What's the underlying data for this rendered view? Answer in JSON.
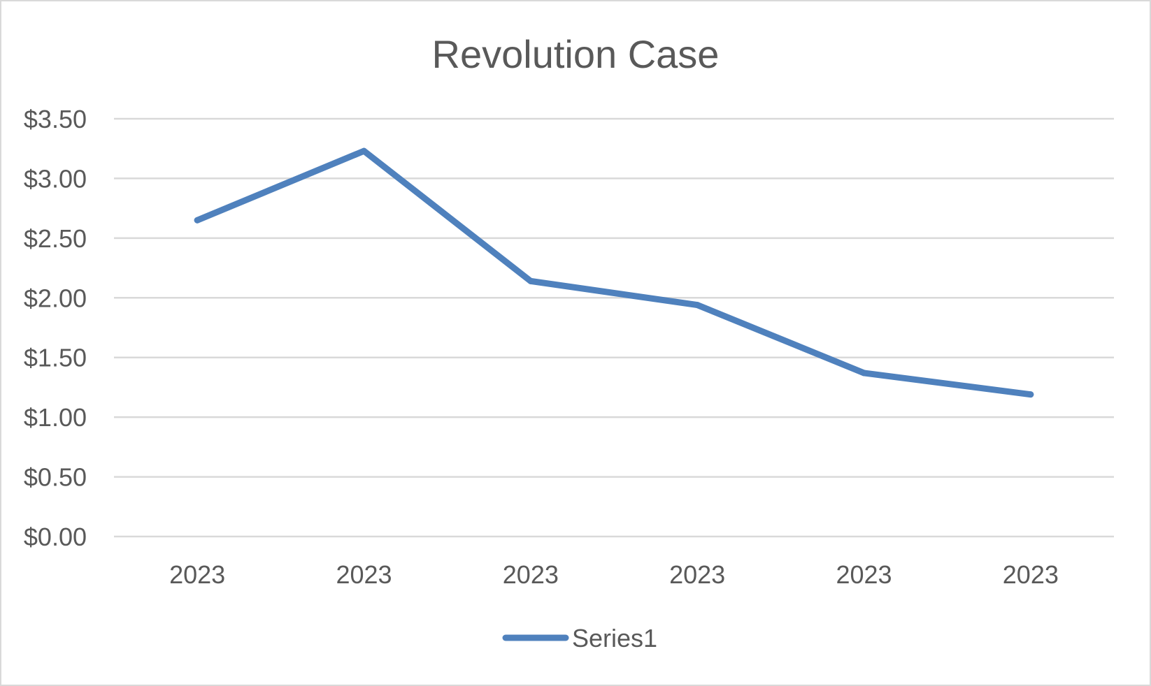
{
  "chart_data": {
    "type": "line",
    "title": "Revolution Case",
    "xlabel": "",
    "ylabel": "",
    "categories": [
      "2023",
      "2023",
      "2023",
      "2023",
      "2023",
      "2023"
    ],
    "series": [
      {
        "name": "Series1",
        "values": [
          2.65,
          3.23,
          2.14,
          1.94,
          1.37,
          1.19
        ],
        "color": "#4f81bd"
      }
    ],
    "ylim": [
      0,
      3.5
    ],
    "y_ticks": [
      {
        "value": 0,
        "label": "$0.00"
      },
      {
        "value": 0.5,
        "label": "$0.50"
      },
      {
        "value": 1,
        "label": "$1.00"
      },
      {
        "value": 1.5,
        "label": "$1.50"
      },
      {
        "value": 2,
        "label": "$2.00"
      },
      {
        "value": 2.5,
        "label": "$2.50"
      },
      {
        "value": 3,
        "label": "$3.00"
      },
      {
        "value": 3.5,
        "label": "$3.50"
      }
    ],
    "grid": true,
    "legend_position": "bottom",
    "colors": {
      "gridline": "#d9d9d9",
      "text": "#595959",
      "border": "#d9d9d9"
    }
  }
}
